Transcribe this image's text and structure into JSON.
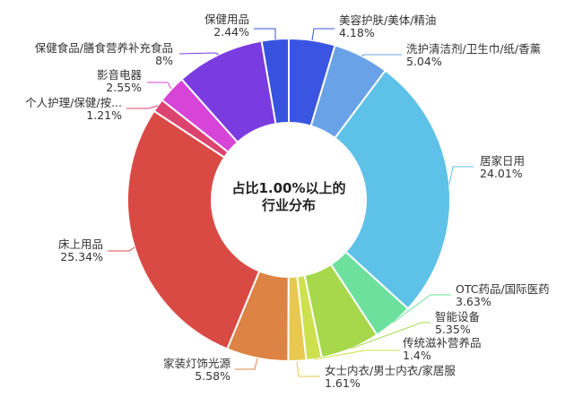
{
  "chart_data": {
    "type": "pie",
    "variant": "donut",
    "title": "占比1.00%以上的行业分布",
    "center_label": {
      "line1": "占比1.00%以上的",
      "line2": "行业分布"
    },
    "start_angle": "12 o'clock, clockwise",
    "legend": "none (labels with leader lines)",
    "slices": [
      {
        "name": "美容护肤/美体/精油",
        "value": 4.18,
        "label": "4.18%",
        "color": "#3a55e2"
      },
      {
        "name": "洗护清洁剂/卫生巾/纸/香薰",
        "value": 5.04,
        "label": "5.04%",
        "color": "#6aa2e8"
      },
      {
        "name": "居家日用",
        "value": 24.01,
        "label": "24.01%",
        "color": "#5ec1e8"
      },
      {
        "name": "OTC药品/国际医药",
        "value": 3.63,
        "label": "3.63%",
        "color": "#6de09e"
      },
      {
        "name": "智能设备",
        "value": 5.35,
        "label": "5.35%",
        "color": "#a7d84c"
      },
      {
        "name": "传统滋补营养品",
        "value": 1.4,
        "label": "1.4%",
        "color": "#cde04e"
      },
      {
        "name": "女士内衣/男士内衣/家居服",
        "value": 1.61,
        "label": "1.61%",
        "color": "#e8c850"
      },
      {
        "name": "家装灯饰光源",
        "value": 5.58,
        "label": "5.58%",
        "color": "#dd8444"
      },
      {
        "name": "床上用品",
        "value": 25.34,
        "label": "25.34%",
        "color": "#da4a45"
      },
      {
        "name": "个人护理/保健/按...",
        "value": 1.21,
        "label": "1.21%",
        "color": "#dc4470"
      },
      {
        "name": "影音电器",
        "value": 2.55,
        "label": "2.55%",
        "color": "#d744d8"
      },
      {
        "name": "保健食品/膳食营养补充食品",
        "value": 8,
        "label": "8%",
        "color": "#7a3be0"
      },
      {
        "name": "保健用品",
        "value": 2.44,
        "label": "2.44%",
        "color": "#3652de"
      }
    ]
  }
}
